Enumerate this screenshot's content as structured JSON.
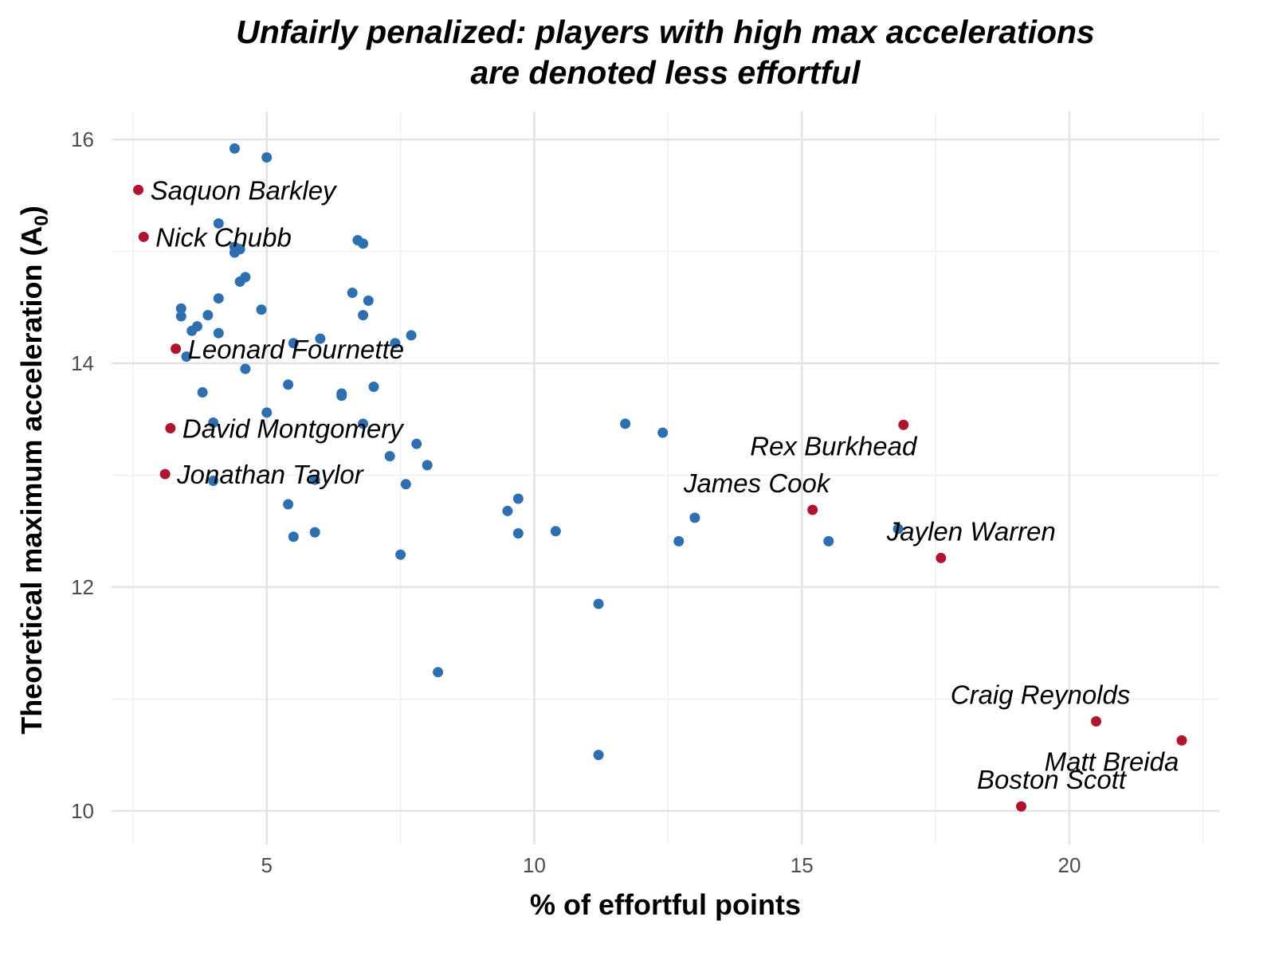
{
  "chart_data": {
    "type": "scatter",
    "title_lines": [
      "Unfairly penalized: players with high max accelerations",
      "are denoted less effortful"
    ],
    "xlabel": "% of effortful points",
    "ylabel_main": "Theoretical maximum acceleration (A",
    "ylabel_sub": "0",
    "ylabel_close": ")",
    "xlim": [
      2.1,
      22.8
    ],
    "ylim": [
      9.7,
      16.25
    ],
    "x_ticks": [
      5,
      10,
      15,
      20
    ],
    "y_ticks": [
      10,
      12,
      14,
      16
    ],
    "grid": true,
    "colors": {
      "other": "#2e6fb0",
      "highlighted": "#b0152f"
    },
    "highlighted": [
      {
        "name": "Saquon Barkley",
        "x": 2.6,
        "y": 15.55,
        "label_side": "right"
      },
      {
        "name": "Nick Chubb",
        "x": 2.7,
        "y": 15.13,
        "label_side": "right"
      },
      {
        "name": "Leonard Fournette",
        "x": 3.3,
        "y": 14.13,
        "label_side": "right"
      },
      {
        "name": "David Montgomery",
        "x": 3.2,
        "y": 13.42,
        "label_side": "right"
      },
      {
        "name": "Jonathan Taylor",
        "x": 3.1,
        "y": 13.01,
        "label_side": "right"
      },
      {
        "name": "Rex Burkhead",
        "x": 16.9,
        "y": 13.45,
        "label_side": "below-left"
      },
      {
        "name": "James Cook",
        "x": 15.2,
        "y": 12.69,
        "label_side": "above-left"
      },
      {
        "name": "Jaylen Warren",
        "x": 17.6,
        "y": 12.26,
        "label_side": "above"
      },
      {
        "name": "Craig Reynolds",
        "x": 20.5,
        "y": 10.8,
        "label_side": "above-left"
      },
      {
        "name": "Matt Breida",
        "x": 22.1,
        "y": 10.63,
        "label_side": "below-left"
      },
      {
        "name": "Boston Scott",
        "x": 19.1,
        "y": 10.04,
        "label_side": "above"
      }
    ],
    "points": [
      [
        4.4,
        15.92
      ],
      [
        5.0,
        15.84
      ],
      [
        4.1,
        15.25
      ],
      [
        6.7,
        15.1
      ],
      [
        6.8,
        15.07
      ],
      [
        4.4,
        15.04
      ],
      [
        4.5,
        15.02
      ],
      [
        4.4,
        14.99
      ],
      [
        4.6,
        14.77
      ],
      [
        4.5,
        14.73
      ],
      [
        6.6,
        14.63
      ],
      [
        4.1,
        14.58
      ],
      [
        6.9,
        14.56
      ],
      [
        3.4,
        14.49
      ],
      [
        4.9,
        14.48
      ],
      [
        3.9,
        14.43
      ],
      [
        6.8,
        14.43
      ],
      [
        3.4,
        14.42
      ],
      [
        3.7,
        14.33
      ],
      [
        3.6,
        14.29
      ],
      [
        4.1,
        14.27
      ],
      [
        7.7,
        14.25
      ],
      [
        6.0,
        14.22
      ],
      [
        5.5,
        14.18
      ],
      [
        7.4,
        14.18
      ],
      [
        3.5,
        14.06
      ],
      [
        4.6,
        13.95
      ],
      [
        5.4,
        13.81
      ],
      [
        7.0,
        13.79
      ],
      [
        3.8,
        13.74
      ],
      [
        6.4,
        13.73
      ],
      [
        6.4,
        13.71
      ],
      [
        5.0,
        13.56
      ],
      [
        4.0,
        13.47
      ],
      [
        6.8,
        13.46
      ],
      [
        11.7,
        13.46
      ],
      [
        12.4,
        13.38
      ],
      [
        7.8,
        13.28
      ],
      [
        7.3,
        13.17
      ],
      [
        8.0,
        13.09
      ],
      [
        4.0,
        12.95
      ],
      [
        5.9,
        12.96
      ],
      [
        7.6,
        12.92
      ],
      [
        9.7,
        12.79
      ],
      [
        5.4,
        12.74
      ],
      [
        9.5,
        12.68
      ],
      [
        13.0,
        12.62
      ],
      [
        16.8,
        12.52
      ],
      [
        10.4,
        12.5
      ],
      [
        5.9,
        12.49
      ],
      [
        9.7,
        12.48
      ],
      [
        5.5,
        12.45
      ],
      [
        12.7,
        12.41
      ],
      [
        15.5,
        12.41
      ],
      [
        7.5,
        12.29
      ],
      [
        11.2,
        11.85
      ],
      [
        8.2,
        11.24
      ],
      [
        11.2,
        10.5
      ]
    ]
  }
}
